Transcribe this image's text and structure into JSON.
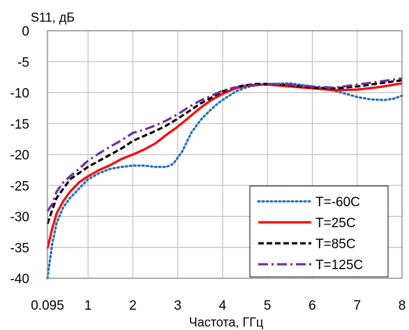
{
  "chart_data": {
    "type": "line",
    "title": "",
    "ylabel": "S11, дБ",
    "xlabel": "Частота, ГГц",
    "xlim": [
      0.095,
      8
    ],
    "ylim": [
      -40,
      0
    ],
    "x_ticks": [
      {
        "value": 0.095,
        "label": "0.095"
      },
      {
        "value": 1,
        "label": "1"
      },
      {
        "value": 2,
        "label": "2"
      },
      {
        "value": 3,
        "label": "3"
      },
      {
        "value": 4,
        "label": "4"
      },
      {
        "value": 5,
        "label": "5"
      },
      {
        "value": 6,
        "label": "6"
      },
      {
        "value": 7,
        "label": "7"
      },
      {
        "value": 8,
        "label": "8"
      }
    ],
    "y_ticks": [
      {
        "value": 0,
        "label": "0"
      },
      {
        "value": -5,
        "label": "-5"
      },
      {
        "value": -10,
        "label": "-10"
      },
      {
        "value": -15,
        "label": "-15"
      },
      {
        "value": -20,
        "label": "-20"
      },
      {
        "value": -25,
        "label": "-25"
      },
      {
        "value": -30,
        "label": "-30"
      },
      {
        "value": -35,
        "label": "-35"
      },
      {
        "value": -40,
        "label": "-40"
      }
    ],
    "grid": true,
    "legend": "bottom-right",
    "series": [
      {
        "name": "T=-60C",
        "color": "#1f6fc0",
        "dash": "dotted",
        "x": [
          0.095,
          0.2,
          0.3,
          0.45,
          0.6,
          0.8,
          1,
          1.25,
          1.5,
          1.75,
          2,
          2.25,
          2.5,
          2.75,
          2.9,
          3.1,
          3.3,
          3.5,
          3.7,
          3.9,
          4.1,
          4.3,
          4.5,
          4.75,
          5,
          5.5,
          6,
          6.5,
          7,
          7.3,
          7.6,
          7.8,
          8
        ],
        "y": [
          -40,
          -34.5,
          -31,
          -28.5,
          -27,
          -25.5,
          -24,
          -23,
          -22.3,
          -22,
          -21.8,
          -21.8,
          -22,
          -22,
          -21.5,
          -19.5,
          -16.5,
          -14.5,
          -13,
          -11.7,
          -10.7,
          -9.8,
          -9.2,
          -8.8,
          -8.6,
          -8.5,
          -9,
          -9.7,
          -10.7,
          -11.1,
          -11.2,
          -11,
          -10.5
        ]
      },
      {
        "name": "T=25C",
        "color": "#ff0000",
        "dash": "solid",
        "x": [
          0.095,
          0.2,
          0.3,
          0.45,
          0.6,
          0.8,
          1,
          1.25,
          1.5,
          1.75,
          2,
          2.25,
          2.5,
          2.75,
          3,
          3.25,
          3.5,
          3.75,
          4,
          4.25,
          4.5,
          4.75,
          5,
          5.5,
          6,
          6.5,
          7,
          7.5,
          8
        ],
        "y": [
          -35.2,
          -32,
          -29.5,
          -27.5,
          -26,
          -24.5,
          -23.5,
          -22.5,
          -21.7,
          -20.7,
          -20,
          -19.2,
          -18.2,
          -16.8,
          -15.5,
          -14,
          -12.5,
          -11.2,
          -10.2,
          -9.4,
          -8.9,
          -8.7,
          -8.7,
          -9,
          -9.3,
          -9.6,
          -9.5,
          -9.1,
          -8.5
        ]
      },
      {
        "name": "T=85C",
        "color": "#000000",
        "dash": "dashed",
        "x": [
          0.095,
          0.2,
          0.3,
          0.45,
          0.6,
          0.8,
          1,
          1.25,
          1.5,
          1.75,
          2,
          2.25,
          2.5,
          2.75,
          3,
          3.25,
          3.5,
          3.75,
          4,
          4.25,
          4.5,
          4.75,
          5,
          5.5,
          6,
          6.5,
          7,
          7.5,
          8
        ],
        "y": [
          -31.2,
          -29,
          -27,
          -25.5,
          -24,
          -23,
          -22,
          -21,
          -20,
          -19,
          -17.8,
          -17,
          -16.2,
          -15.3,
          -14.2,
          -13,
          -11.8,
          -10.8,
          -9.8,
          -9.2,
          -8.8,
          -8.6,
          -8.6,
          -8.8,
          -9.2,
          -9.3,
          -9,
          -8.5,
          -8
        ]
      },
      {
        "name": "T=125C",
        "color": "#7030a0",
        "dash": "dashdot",
        "x": [
          0.095,
          0.2,
          0.3,
          0.45,
          0.6,
          0.8,
          1,
          1.25,
          1.5,
          1.75,
          2,
          2.25,
          2.5,
          2.75,
          3,
          3.25,
          3.5,
          3.75,
          4,
          4.25,
          4.5,
          4.75,
          5,
          5.5,
          6,
          6.5,
          7,
          7.5,
          8
        ],
        "y": [
          -29.2,
          -28,
          -26,
          -24.5,
          -23.5,
          -22.3,
          -21,
          -19.8,
          -18.7,
          -17.7,
          -16.5,
          -16,
          -15.3,
          -14.5,
          -13.5,
          -12.3,
          -11.3,
          -10.5,
          -9.7,
          -9.2,
          -8.9,
          -8.8,
          -8.6,
          -8.7,
          -9,
          -9.2,
          -8.7,
          -8.2,
          -7.7
        ]
      }
    ]
  }
}
